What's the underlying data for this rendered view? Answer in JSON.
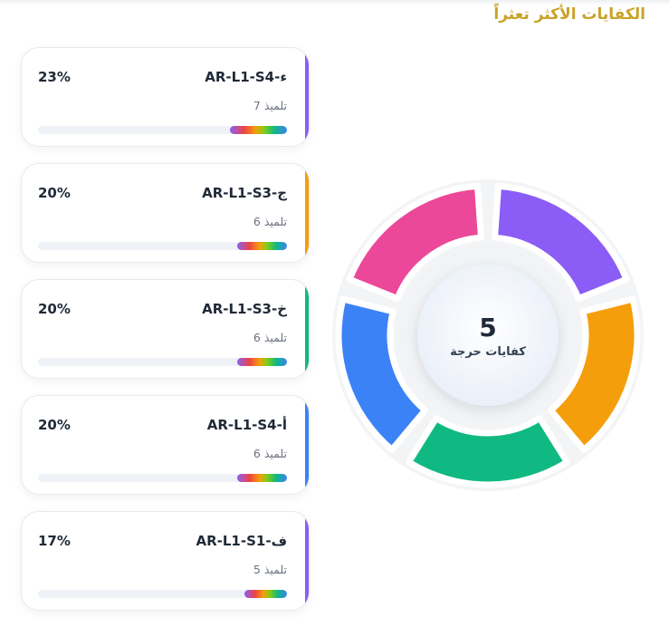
{
  "header": {
    "title": "الكفايات الأكثر تعثراً"
  },
  "competencies": [
    {
      "code": "AR-L1-S4-ء",
      "percent": "23%",
      "students": "7 تلميذ",
      "progress": 0.23,
      "accent": "#8b5cf6"
    },
    {
      "code": "AR-L1-S3-ج",
      "percent": "20%",
      "students": "6 تلميذ",
      "progress": 0.2,
      "accent": "#f59e0b"
    },
    {
      "code": "AR-L1-S3-خ",
      "percent": "20%",
      "students": "6 تلميذ",
      "progress": 0.2,
      "accent": "#10b981"
    },
    {
      "code": "AR-L1-S4-أ",
      "percent": "20%",
      "students": "6 تلميذ",
      "progress": 0.2,
      "accent": "#3b82f6"
    },
    {
      "code": "AR-L1-S1-ف",
      "percent": "17%",
      "students": "5 تلميذ",
      "progress": 0.17,
      "accent": "#8b5cf6"
    }
  ],
  "donut": {
    "center_value": "5",
    "center_label": "كفايات حرجة",
    "segment_colors": [
      "#8b5cf6",
      "#f59e0b",
      "#10b981",
      "#3b82f6",
      "#ec4899"
    ]
  }
}
